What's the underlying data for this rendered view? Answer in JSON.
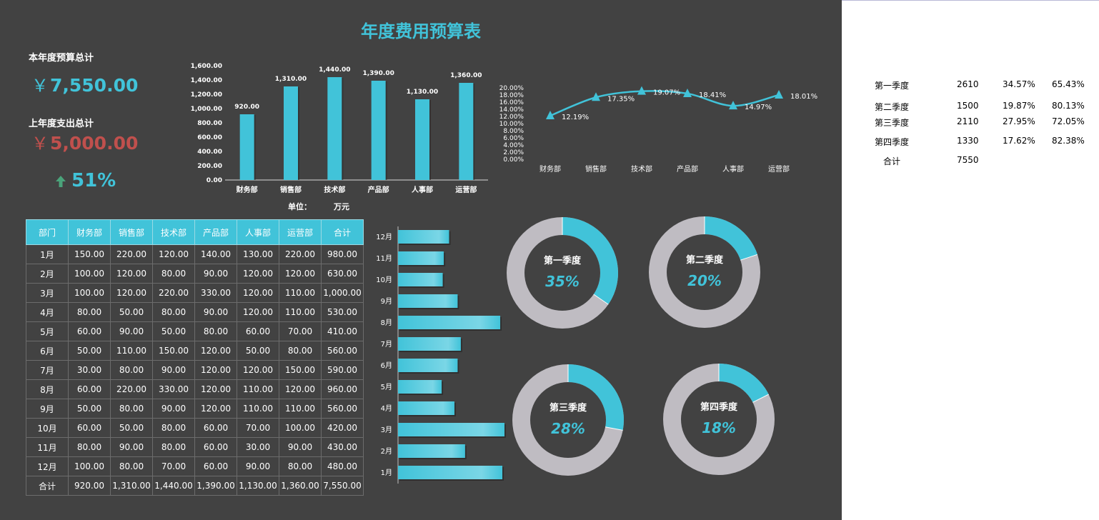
{
  "title": "年度费用预算表",
  "kpi": {
    "budget_label": "本年度预算总计",
    "budget_currency": "￥",
    "budget_value": "7,550.00",
    "spent_label": "上年度支出总计",
    "spent_currency": "￥",
    "spent_value": "5,000.00",
    "growth": "51%",
    "growth_icon": "arrow-up-icon"
  },
  "unit": {
    "label": "单位：",
    "value": "万元"
  },
  "colors": {
    "accent": "#41c3d9",
    "red": "#c0504d",
    "gray": "#bfbcc2",
    "bg": "#424242"
  },
  "chart_data": [
    {
      "type": "bar",
      "categories": [
        "财务部",
        "销售部",
        "技术部",
        "产品部",
        "人事部",
        "运营部"
      ],
      "values": [
        920,
        1310,
        1440,
        1390,
        1130,
        1360
      ],
      "data_labels": [
        "920.00",
        "1,310.00",
        "1,440.00",
        "1,390.00",
        "1,130.00",
        "1,360.00"
      ],
      "ylim": [
        0,
        1600
      ],
      "y_ticks": [
        "0.00",
        "200.00",
        "400.00",
        "600.00",
        "800.00",
        "1,000.00",
        "1,200.00",
        "1,400.00",
        "1,600.00"
      ],
      "grid": false
    },
    {
      "type": "line",
      "categories": [
        "财务部",
        "销售部",
        "技术部",
        "产品部",
        "人事部",
        "运营部"
      ],
      "values": [
        12.19,
        17.35,
        19.07,
        18.41,
        14.97,
        18.01
      ],
      "data_labels": [
        "12.19%",
        "17.35%",
        "19.07%",
        "18.41%",
        "14.97%",
        "18.01%"
      ],
      "ylim": [
        0,
        20
      ],
      "y_ticks": [
        "0.00%",
        "2.00%",
        "4.00%",
        "6.00%",
        "8.00%",
        "10.00%",
        "12.00%",
        "14.00%",
        "16.00%",
        "18.00%",
        "20.00%"
      ],
      "marker": "triangle"
    },
    {
      "type": "bar",
      "orientation": "horizontal",
      "categories": [
        "1月",
        "2月",
        "3月",
        "4月",
        "5月",
        "6月",
        "7月",
        "8月",
        "9月",
        "10月",
        "11月",
        "12月"
      ],
      "values": [
        980,
        630,
        1000,
        530,
        410,
        560,
        590,
        960,
        560,
        420,
        430,
        480
      ]
    },
    {
      "type": "pie",
      "style": "donut",
      "donuts": [
        {
          "label": "第一季度",
          "value": 34.57,
          "pct": "35%"
        },
        {
          "label": "第二季度",
          "value": 19.87,
          "pct": "20%"
        },
        {
          "label": "第三季度",
          "value": 27.95,
          "pct": "28%"
        },
        {
          "label": "第四季度",
          "value": 17.62,
          "pct": "18%"
        }
      ]
    }
  ],
  "table": {
    "headers": [
      "部门",
      "财务部",
      "销售部",
      "技术部",
      "产品部",
      "人事部",
      "运营部",
      "合计"
    ],
    "rows": [
      [
        "1月",
        "150.00",
        "220.00",
        "120.00",
        "140.00",
        "130.00",
        "220.00",
        "980.00"
      ],
      [
        "2月",
        "100.00",
        "120.00",
        "80.00",
        "90.00",
        "120.00",
        "120.00",
        "630.00"
      ],
      [
        "3月",
        "100.00",
        "120.00",
        "220.00",
        "330.00",
        "120.00",
        "110.00",
        "1,000.00"
      ],
      [
        "4月",
        "80.00",
        "50.00",
        "80.00",
        "90.00",
        "120.00",
        "110.00",
        "530.00"
      ],
      [
        "5月",
        "60.00",
        "90.00",
        "50.00",
        "80.00",
        "60.00",
        "70.00",
        "410.00"
      ],
      [
        "6月",
        "50.00",
        "110.00",
        "150.00",
        "120.00",
        "50.00",
        "80.00",
        "560.00"
      ],
      [
        "7月",
        "30.00",
        "80.00",
        "90.00",
        "120.00",
        "120.00",
        "150.00",
        "590.00"
      ],
      [
        "8月",
        "60.00",
        "220.00",
        "330.00",
        "120.00",
        "110.00",
        "120.00",
        "960.00"
      ],
      [
        "9月",
        "50.00",
        "80.00",
        "90.00",
        "120.00",
        "110.00",
        "110.00",
        "560.00"
      ],
      [
        "10月",
        "60.00",
        "50.00",
        "80.00",
        "60.00",
        "70.00",
        "100.00",
        "420.00"
      ],
      [
        "11月",
        "80.00",
        "90.00",
        "80.00",
        "60.00",
        "30.00",
        "90.00",
        "430.00"
      ],
      [
        "12月",
        "100.00",
        "80.00",
        "70.00",
        "60.00",
        "90.00",
        "80.00",
        "480.00"
      ],
      [
        "合计",
        "920.00",
        "1,310.00",
        "1,440.00",
        "1,390.00",
        "1,130.00",
        "1,360.00",
        "7,550.00"
      ]
    ]
  },
  "side_table": {
    "rows": [
      [
        "第一季度",
        "2610",
        "34.57%",
        "65.43%"
      ],
      [
        "第二季度",
        "1500",
        "19.87%",
        "80.13%"
      ],
      [
        "第三季度",
        "2110",
        "27.95%",
        "72.05%"
      ],
      [
        "第四季度",
        "1330",
        "17.62%",
        "82.38%"
      ],
      [
        "合计",
        "7550",
        "",
        ""
      ]
    ]
  }
}
